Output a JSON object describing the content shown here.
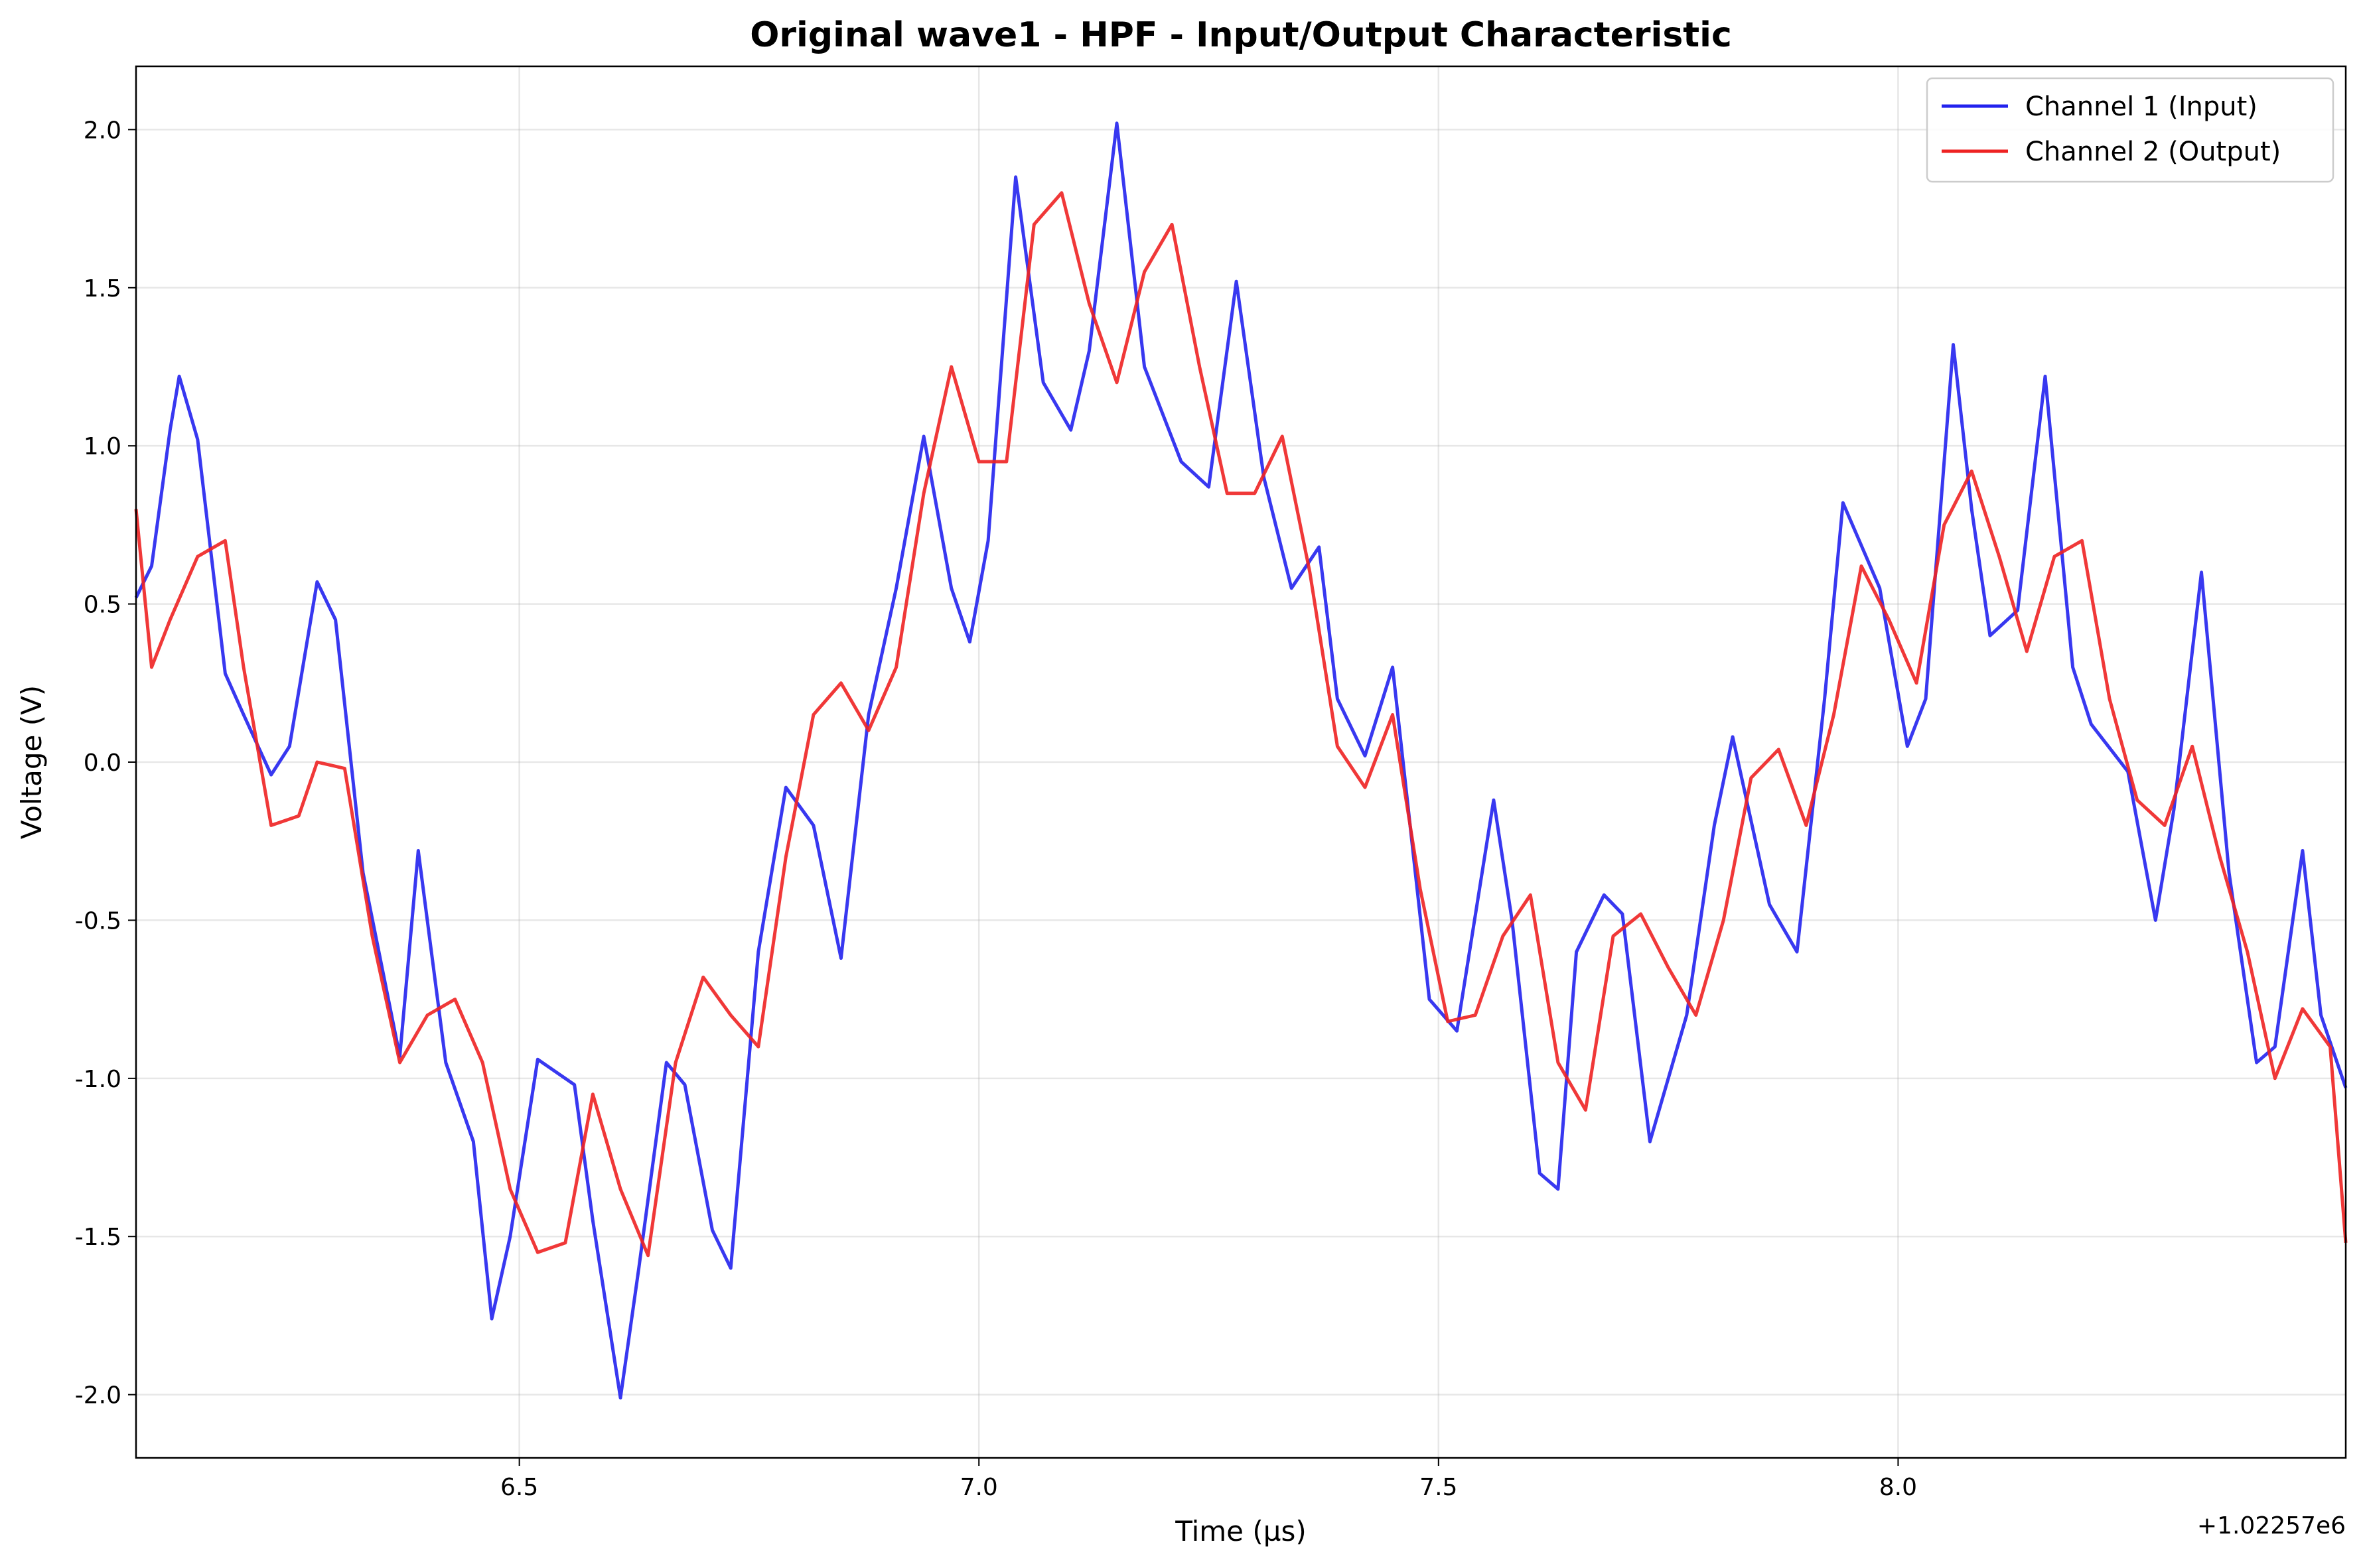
{
  "chart_data": {
    "type": "line",
    "title": "Original wave1 - HPF - Input/Output Characteristic",
    "xlabel": "Time (µs)",
    "ylabel": "Voltage (V)",
    "x_offset_label": "+1.02257e6",
    "xlim": [
      6.083,
      8.487
    ],
    "ylim": [
      -2.2,
      2.2
    ],
    "x_ticks": [
      "6.5",
      "7.0",
      "7.5",
      "8.0"
    ],
    "x_tick_values": [
      6.5,
      7.0,
      7.5,
      8.0
    ],
    "y_ticks": [
      "-2.0",
      "-1.5",
      "-1.0",
      "-0.5",
      "0.0",
      "0.5",
      "1.0",
      "1.5",
      "2.0"
    ],
    "y_tick_values": [
      -2.0,
      -1.5,
      -1.0,
      -0.5,
      0.0,
      0.5,
      1.0,
      1.5,
      2.0
    ],
    "grid": true,
    "legend_position": "top-right",
    "series": [
      {
        "name": "Channel 1 (Input)",
        "color": "#2222ee",
        "x": [
          6.083,
          6.1,
          6.12,
          6.13,
          6.15,
          6.18,
          6.2,
          6.23,
          6.25,
          6.28,
          6.3,
          6.33,
          6.37,
          6.39,
          6.42,
          6.45,
          6.47,
          6.49,
          6.52,
          6.56,
          6.58,
          6.61,
          6.63,
          6.66,
          6.68,
          6.71,
          6.73,
          6.76,
          6.79,
          6.82,
          6.85,
          6.88,
          6.91,
          6.94,
          6.97,
          6.99,
          7.01,
          7.04,
          7.07,
          7.1,
          7.12,
          7.15,
          7.18,
          7.22,
          7.25,
          7.28,
          7.31,
          7.34,
          7.37,
          7.39,
          7.42,
          7.45,
          7.49,
          7.52,
          7.56,
          7.58,
          7.61,
          7.63,
          7.65,
          7.68,
          7.7,
          7.73,
          7.77,
          7.8,
          7.82,
          7.86,
          7.89,
          7.92,
          7.94,
          7.98,
          8.01,
          8.03,
          8.06,
          8.08,
          8.1,
          8.13,
          8.16,
          8.19,
          8.21,
          8.25,
          8.28,
          8.3,
          8.33,
          8.36,
          8.39,
          8.41,
          8.44,
          8.46,
          8.487
        ],
        "y": [
          0.52,
          0.62,
          1.05,
          1.22,
          1.02,
          0.28,
          0.15,
          -0.04,
          0.05,
          0.57,
          0.45,
          -0.35,
          -0.93,
          -0.28,
          -0.95,
          -1.2,
          -1.76,
          -1.5,
          -0.94,
          -1.02,
          -1.45,
          -2.01,
          -1.6,
          -0.95,
          -1.02,
          -1.48,
          -1.6,
          -0.6,
          -0.08,
          -0.2,
          -0.62,
          0.15,
          0.55,
          1.03,
          0.55,
          0.38,
          0.7,
          1.85,
          1.2,
          1.05,
          1.3,
          2.02,
          1.25,
          0.95,
          0.87,
          1.52,
          0.9,
          0.55,
          0.68,
          0.2,
          0.02,
          0.3,
          -0.75,
          -0.85,
          -0.12,
          -0.5,
          -1.3,
          -1.35,
          -0.6,
          -0.42,
          -0.48,
          -1.2,
          -0.8,
          -0.2,
          0.08,
          -0.45,
          -0.6,
          0.2,
          0.82,
          0.55,
          0.05,
          0.2,
          1.32,
          0.8,
          0.4,
          0.48,
          1.22,
          0.3,
          0.12,
          -0.03,
          -0.5,
          -0.15,
          0.6,
          -0.35,
          -0.95,
          -0.9,
          -0.28,
          -0.8,
          -1.03
        ]
      },
      {
        "name": "Channel 2 (Output)",
        "color": "#ee2222",
        "x": [
          6.083,
          6.1,
          6.12,
          6.15,
          6.18,
          6.2,
          6.23,
          6.26,
          6.28,
          6.31,
          6.34,
          6.37,
          6.4,
          6.43,
          6.46,
          6.49,
          6.52,
          6.55,
          6.58,
          6.61,
          6.64,
          6.67,
          6.7,
          6.73,
          6.76,
          6.79,
          6.82,
          6.85,
          6.88,
          6.91,
          6.94,
          6.97,
          7.0,
          7.03,
          7.06,
          7.09,
          7.12,
          7.15,
          7.18,
          7.21,
          7.24,
          7.27,
          7.3,
          7.33,
          7.36,
          7.39,
          7.42,
          7.45,
          7.48,
          7.51,
          7.54,
          7.57,
          7.6,
          7.63,
          7.66,
          7.69,
          7.72,
          7.75,
          7.78,
          7.81,
          7.84,
          7.87,
          7.9,
          7.93,
          7.96,
          7.99,
          8.02,
          8.05,
          8.08,
          8.11,
          8.14,
          8.17,
          8.2,
          8.23,
          8.26,
          8.29,
          8.32,
          8.35,
          8.38,
          8.41,
          8.44,
          8.47,
          8.487
        ],
        "y": [
          0.8,
          0.3,
          0.45,
          0.65,
          0.7,
          0.3,
          -0.2,
          -0.17,
          0.0,
          -0.02,
          -0.55,
          -0.95,
          -0.8,
          -0.75,
          -0.95,
          -1.35,
          -1.55,
          -1.52,
          -1.05,
          -1.35,
          -1.56,
          -0.95,
          -0.68,
          -0.8,
          -0.9,
          -0.3,
          0.15,
          0.25,
          0.1,
          0.3,
          0.85,
          1.25,
          0.95,
          0.95,
          1.7,
          1.8,
          1.45,
          1.2,
          1.55,
          1.7,
          1.25,
          0.85,
          0.85,
          1.03,
          0.6,
          0.05,
          -0.08,
          0.15,
          -0.4,
          -0.82,
          -0.8,
          -0.55,
          -0.42,
          -0.95,
          -1.1,
          -0.55,
          -0.48,
          -0.65,
          -0.8,
          -0.5,
          -0.05,
          0.04,
          -0.2,
          0.15,
          0.62,
          0.45,
          0.25,
          0.75,
          0.92,
          0.65,
          0.35,
          0.65,
          0.7,
          0.2,
          -0.12,
          -0.2,
          0.05,
          -0.3,
          -0.6,
          -1.0,
          -0.78,
          -0.9,
          -1.52
        ]
      }
    ]
  }
}
